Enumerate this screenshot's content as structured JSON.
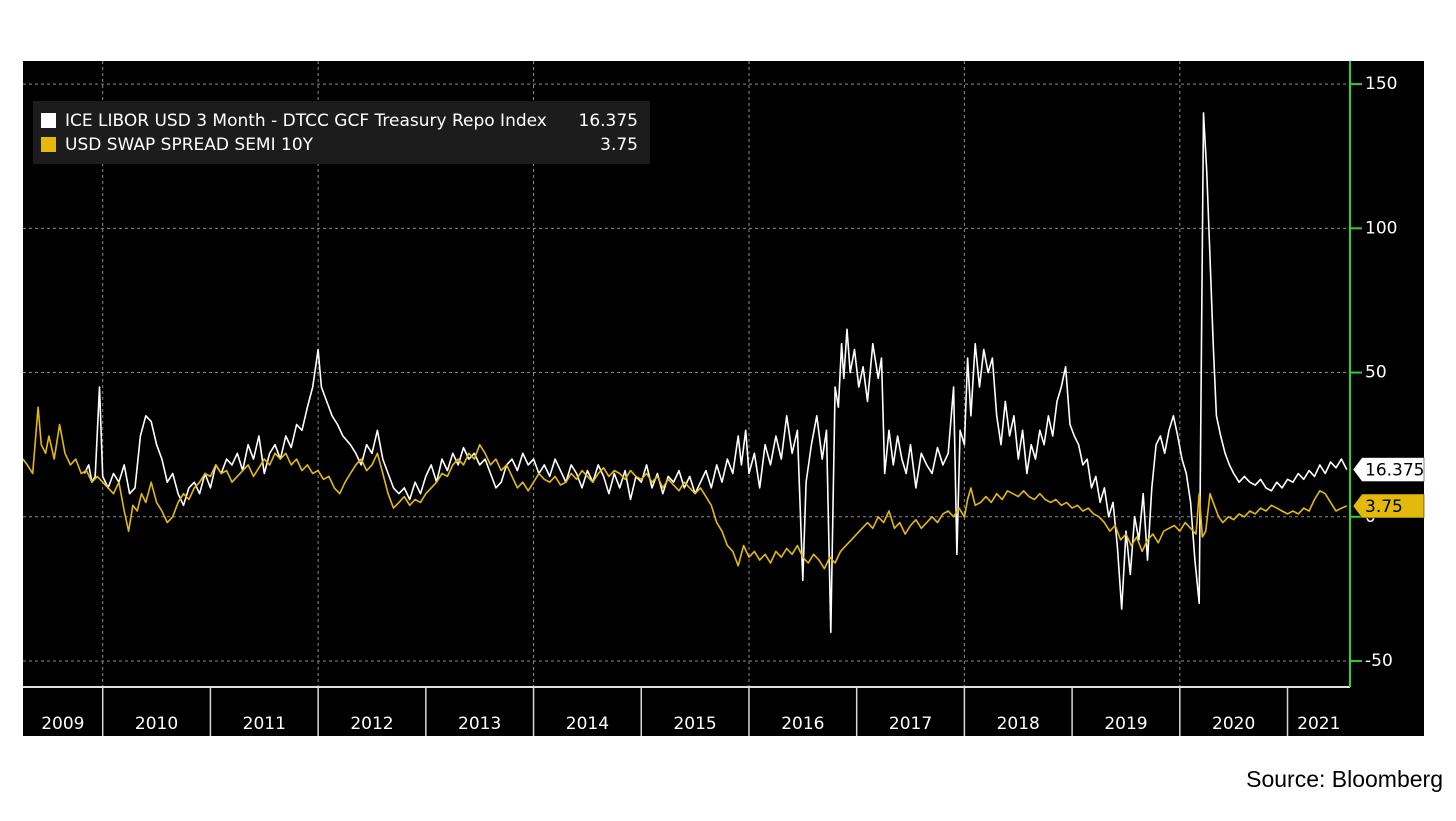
{
  "chart_data": {
    "type": "line",
    "source": "Source: Bloomberg",
    "xlim": [
      2009.26,
      2021.58
    ],
    "xticks": [
      2010,
      2011,
      2012,
      2013,
      2014,
      2015,
      2016,
      2017,
      2018,
      2019,
      2020,
      2021
    ],
    "year_labels": [
      "2009",
      "2010",
      "2011",
      "2012",
      "2013",
      "2014",
      "2015",
      "2016",
      "2017",
      "2018",
      "2019",
      "2020",
      "2021"
    ],
    "ylim": [
      -59,
      158
    ],
    "yticks": [
      -50,
      0,
      50,
      100,
      150
    ],
    "grid": true,
    "series": [
      {
        "name": "ICE LIBOR USD 3 Month - DTCC GCF Treasury Repo Index",
        "color": "#ffffff",
        "x": [
          2009.83,
          2009.87,
          2009.9,
          2009.93,
          2009.97,
          2010.0,
          2010.05,
          2010.1,
          2010.15,
          2010.2,
          2010.25,
          2010.3,
          2010.35,
          2010.4,
          2010.45,
          2010.5,
          2010.55,
          2010.6,
          2010.65,
          2010.7,
          2010.75,
          2010.8,
          2010.85,
          2010.9,
          2010.95,
          2011.0,
          2011.05,
          2011.1,
          2011.15,
          2011.2,
          2011.25,
          2011.3,
          2011.35,
          2011.4,
          2011.45,
          2011.5,
          2011.55,
          2011.6,
          2011.65,
          2011.7,
          2011.75,
          2011.8,
          2011.85,
          2011.9,
          2011.95,
          2012.0,
          2012.03,
          2012.08,
          2012.13,
          2012.18,
          2012.23,
          2012.3,
          2012.35,
          2012.4,
          2012.45,
          2012.5,
          2012.55,
          2012.6,
          2012.65,
          2012.7,
          2012.75,
          2012.8,
          2012.85,
          2012.9,
          2012.95,
          2013.0,
          2013.05,
          2013.1,
          2013.15,
          2013.2,
          2013.25,
          2013.3,
          2013.35,
          2013.4,
          2013.45,
          2013.5,
          2013.55,
          2013.6,
          2013.65,
          2013.7,
          2013.75,
          2013.8,
          2013.85,
          2013.9,
          2013.95,
          2014.0,
          2014.05,
          2014.1,
          2014.15,
          2014.2,
          2014.25,
          2014.3,
          2014.35,
          2014.4,
          2014.45,
          2014.5,
          2014.55,
          2014.6,
          2014.65,
          2014.7,
          2014.75,
          2014.8,
          2014.85,
          2014.9,
          2014.95,
          2015.0,
          2015.05,
          2015.1,
          2015.15,
          2015.2,
          2015.25,
          2015.3,
          2015.35,
          2015.4,
          2015.45,
          2015.5,
          2015.55,
          2015.6,
          2015.65,
          2015.7,
          2015.75,
          2015.8,
          2015.85,
          2015.9,
          2015.93,
          2015.97,
          2016.0,
          2016.05,
          2016.1,
          2016.15,
          2016.2,
          2016.25,
          2016.3,
          2016.35,
          2016.4,
          2016.45,
          2016.5,
          2016.53,
          2016.58,
          2016.63,
          2016.68,
          2016.72,
          2016.76,
          2016.8,
          2016.83,
          2016.86,
          2016.88,
          2016.91,
          2016.94,
          2016.98,
          2017.02,
          2017.06,
          2017.1,
          2017.15,
          2017.2,
          2017.23,
          2017.26,
          2017.3,
          2017.34,
          2017.38,
          2017.42,
          2017.46,
          2017.5,
          2017.55,
          2017.6,
          2017.65,
          2017.7,
          2017.75,
          2017.8,
          2017.85,
          2017.9,
          2017.93,
          2017.96,
          2018.0,
          2018.03,
          2018.06,
          2018.1,
          2018.14,
          2018.18,
          2018.22,
          2018.26,
          2018.3,
          2018.34,
          2018.38,
          2018.42,
          2018.46,
          2018.5,
          2018.54,
          2018.58,
          2018.62,
          2018.66,
          2018.7,
          2018.74,
          2018.78,
          2018.82,
          2018.86,
          2018.9,
          2018.94,
          2018.98,
          2019.02,
          2019.06,
          2019.1,
          2019.14,
          2019.18,
          2019.22,
          2019.26,
          2019.3,
          2019.34,
          2019.38,
          2019.42,
          2019.46,
          2019.5,
          2019.54,
          2019.58,
          2019.62,
          2019.66,
          2019.7,
          2019.74,
          2019.78,
          2019.82,
          2019.86,
          2019.9,
          2019.94,
          2019.98,
          2020.02,
          2020.06,
          2020.1,
          2020.14,
          2020.18,
          2020.22,
          2020.25,
          2020.28,
          2020.31,
          2020.34,
          2020.38,
          2020.42,
          2020.46,
          2020.5,
          2020.55,
          2020.6,
          2020.65,
          2020.7,
          2020.75,
          2020.8,
          2020.85,
          2020.9,
          2020.95,
          2021.0,
          2021.05,
          2021.1,
          2021.15,
          2021.2,
          2021.25,
          2021.3,
          2021.35,
          2021.4,
          2021.45,
          2021.5,
          2021.55
        ],
        "values": [
          15,
          18,
          12,
          14,
          45,
          14,
          10,
          15,
          12,
          18,
          8,
          10,
          28,
          35,
          33,
          25,
          20,
          12,
          15,
          8,
          4,
          10,
          12,
          8,
          15,
          10,
          18,
          15,
          20,
          18,
          22,
          16,
          25,
          20,
          28,
          15,
          22,
          25,
          20,
          28,
          24,
          32,
          30,
          38,
          45,
          58,
          45,
          40,
          35,
          32,
          28,
          25,
          22,
          18,
          25,
          22,
          30,
          20,
          15,
          10,
          8,
          10,
          6,
          12,
          8,
          14,
          18,
          12,
          20,
          16,
          22,
          18,
          24,
          20,
          22,
          18,
          20,
          15,
          10,
          12,
          18,
          20,
          16,
          22,
          18,
          20,
          15,
          18,
          14,
          20,
          16,
          12,
          18,
          15,
          10,
          16,
          12,
          18,
          14,
          8,
          15,
          10,
          16,
          6,
          14,
          12,
          18,
          10,
          15,
          8,
          14,
          12,
          16,
          10,
          14,
          8,
          12,
          16,
          10,
          18,
          12,
          20,
          15,
          28,
          18,
          30,
          15,
          22,
          10,
          25,
          18,
          28,
          20,
          35,
          22,
          30,
          -22,
          12,
          25,
          35,
          20,
          30,
          -40,
          45,
          38,
          60,
          48,
          65,
          50,
          58,
          45,
          52,
          40,
          60,
          48,
          55,
          15,
          30,
          18,
          28,
          20,
          15,
          25,
          10,
          22,
          18,
          15,
          24,
          18,
          22,
          45,
          -13,
          30,
          25,
          55,
          35,
          60,
          45,
          58,
          50,
          55,
          35,
          25,
          40,
          28,
          35,
          20,
          30,
          15,
          25,
          20,
          30,
          25,
          35,
          28,
          40,
          45,
          52,
          32,
          28,
          25,
          18,
          20,
          10,
          14,
          5,
          10,
          0,
          5,
          -10,
          -32,
          -5,
          -20,
          0,
          -8,
          8,
          -15,
          10,
          25,
          28,
          22,
          30,
          35,
          28,
          20,
          15,
          5,
          -15,
          -30,
          140,
          120,
          90,
          60,
          35,
          28,
          22,
          18,
          15,
          12,
          14,
          12,
          11,
          13,
          10,
          9,
          12,
          10,
          13,
          12,
          15,
          13,
          16,
          14,
          18,
          15,
          19,
          17,
          20,
          16.375
        ]
      },
      {
        "name": "USD SWAP SPREAD SEMI 10Y",
        "color": "#e3b90e",
        "x": [
          2009.26,
          2009.3,
          2009.35,
          2009.4,
          2009.43,
          2009.47,
          2009.5,
          2009.55,
          2009.6,
          2009.65,
          2009.7,
          2009.75,
          2009.8,
          2009.85,
          2009.9,
          2009.95,
          2010.0,
          2010.05,
          2010.1,
          2010.15,
          2010.2,
          2010.24,
          2010.28,
          2010.32,
          2010.36,
          2010.4,
          2010.45,
          2010.5,
          2010.55,
          2010.6,
          2010.65,
          2010.7,
          2010.75,
          2010.8,
          2010.85,
          2010.9,
          2010.95,
          2011.0,
          2011.05,
          2011.1,
          2011.15,
          2011.2,
          2011.25,
          2011.3,
          2011.35,
          2011.4,
          2011.45,
          2011.5,
          2011.55,
          2011.6,
          2011.65,
          2011.7,
          2011.75,
          2011.8,
          2011.85,
          2011.9,
          2011.95,
          2012.0,
          2012.05,
          2012.1,
          2012.15,
          2012.2,
          2012.25,
          2012.3,
          2012.35,
          2012.4,
          2012.45,
          2012.5,
          2012.55,
          2012.6,
          2012.65,
          2012.7,
          2012.75,
          2012.8,
          2012.85,
          2012.9,
          2012.95,
          2013.0,
          2013.05,
          2013.1,
          2013.15,
          2013.2,
          2013.25,
          2013.3,
          2013.35,
          2013.4,
          2013.45,
          2013.5,
          2013.55,
          2013.6,
          2013.65,
          2013.7,
          2013.75,
          2013.8,
          2013.85,
          2013.9,
          2013.95,
          2014.0,
          2014.05,
          2014.1,
          2014.15,
          2014.2,
          2014.25,
          2014.3,
          2014.35,
          2014.4,
          2014.45,
          2014.5,
          2014.55,
          2014.6,
          2014.65,
          2014.7,
          2014.75,
          2014.8,
          2014.85,
          2014.9,
          2014.95,
          2015.0,
          2015.05,
          2015.1,
          2015.15,
          2015.2,
          2015.25,
          2015.3,
          2015.35,
          2015.4,
          2015.45,
          2015.5,
          2015.55,
          2015.6,
          2015.65,
          2015.7,
          2015.75,
          2015.8,
          2015.85,
          2015.9,
          2015.95,
          2016.0,
          2016.05,
          2016.1,
          2016.15,
          2016.2,
          2016.25,
          2016.3,
          2016.35,
          2016.4,
          2016.45,
          2016.5,
          2016.55,
          2016.6,
          2016.65,
          2016.7,
          2016.75,
          2016.8,
          2016.85,
          2016.9,
          2016.95,
          2017.0,
          2017.05,
          2017.1,
          2017.15,
          2017.2,
          2017.25,
          2017.3,
          2017.35,
          2017.4,
          2017.45,
          2017.5,
          2017.55,
          2017.6,
          2017.65,
          2017.7,
          2017.75,
          2017.8,
          2017.85,
          2017.9,
          2017.95,
          2018.0,
          2018.03,
          2018.06,
          2018.1,
          2018.15,
          2018.2,
          2018.25,
          2018.3,
          2018.35,
          2018.4,
          2018.45,
          2018.5,
          2018.55,
          2018.6,
          2018.65,
          2018.7,
          2018.75,
          2018.8,
          2018.85,
          2018.9,
          2018.95,
          2019.0,
          2019.05,
          2019.1,
          2019.15,
          2019.2,
          2019.25,
          2019.3,
          2019.35,
          2019.4,
          2019.45,
          2019.5,
          2019.55,
          2019.6,
          2019.65,
          2019.7,
          2019.75,
          2019.8,
          2019.85,
          2019.9,
          2019.95,
          2020.0,
          2020.05,
          2020.1,
          2020.15,
          2020.18,
          2020.21,
          2020.24,
          2020.28,
          2020.32,
          2020.36,
          2020.4,
          2020.45,
          2020.5,
          2020.55,
          2020.6,
          2020.65,
          2020.7,
          2020.75,
          2020.8,
          2020.85,
          2020.9,
          2020.95,
          2021.0,
          2021.05,
          2021.1,
          2021.15,
          2021.2,
          2021.25,
          2021.3,
          2021.35,
          2021.4,
          2021.45,
          2021.5,
          2021.55
        ],
        "values": [
          20,
          18,
          15,
          38,
          25,
          22,
          28,
          20,
          32,
          22,
          18,
          20,
          15,
          16,
          12,
          14,
          12,
          10,
          8,
          12,
          2,
          -5,
          4,
          2,
          8,
          5,
          12,
          5,
          2,
          -2,
          0,
          5,
          8,
          6,
          10,
          12,
          15,
          14,
          18,
          15,
          16,
          12,
          14,
          16,
          18,
          14,
          17,
          20,
          18,
          22,
          20,
          22,
          18,
          20,
          16,
          18,
          15,
          16,
          13,
          14,
          10,
          8,
          12,
          15,
          18,
          20,
          16,
          18,
          22,
          15,
          8,
          3,
          5,
          7,
          4,
          6,
          5,
          8,
          10,
          12,
          15,
          14,
          18,
          20,
          18,
          22,
          20,
          25,
          22,
          18,
          20,
          16,
          18,
          14,
          10,
          12,
          9,
          12,
          15,
          13,
          12,
          14,
          11,
          12,
          15,
          13,
          16,
          14,
          12,
          15,
          17,
          14,
          16,
          15,
          13,
          16,
          14,
          13,
          15,
          12,
          14,
          10,
          13,
          11,
          9,
          12,
          10,
          8,
          10,
          7,
          4,
          -2,
          -5,
          -10,
          -12,
          -17,
          -10,
          -14,
          -12,
          -15,
          -13,
          -16,
          -12,
          -14,
          -11,
          -13,
          -10,
          -14,
          -16,
          -13,
          -15,
          -18,
          -14,
          -16,
          -12,
          -10,
          -8,
          -6,
          -4,
          -2,
          -4,
          0,
          -2,
          2,
          -4,
          -2,
          -6,
          -3,
          -1,
          -4,
          -2,
          0,
          -2,
          1,
          2,
          0,
          3,
          0,
          6,
          10,
          4,
          5,
          7,
          5,
          8,
          6,
          9,
          8,
          7,
          9,
          7,
          6,
          8,
          6,
          5,
          6,
          4,
          5,
          3,
          4,
          2,
          3,
          1,
          0,
          -2,
          -5,
          -3,
          -8,
          -6,
          -10,
          -7,
          -12,
          -8,
          -6,
          -9,
          -5,
          -4,
          -3,
          -5,
          -2,
          -4,
          -6,
          8,
          -7,
          -5,
          8,
          4,
          0,
          -2,
          0,
          -1,
          1,
          0,
          2,
          1,
          3,
          2,
          4,
          3,
          2,
          1,
          2,
          1,
          3,
          2,
          6,
          9,
          8,
          5,
          2,
          3,
          3.75
        ]
      }
    ]
  }
}
